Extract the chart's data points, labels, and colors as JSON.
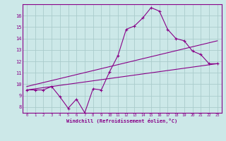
{
  "xlabel": "Windchill (Refroidissement éolien,°C)",
  "bg_color": "#cce8e8",
  "grid_color": "#aacccc",
  "line_color": "#880088",
  "xlim": [
    -0.5,
    23.5
  ],
  "ylim": [
    7.5,
    17.0
  ],
  "xticks": [
    0,
    1,
    2,
    3,
    4,
    5,
    6,
    7,
    8,
    9,
    10,
    11,
    12,
    13,
    14,
    15,
    16,
    17,
    18,
    19,
    20,
    21,
    22,
    23
  ],
  "yticks": [
    8,
    9,
    10,
    11,
    12,
    13,
    14,
    15,
    16
  ],
  "line1_x": [
    0,
    1,
    2,
    3,
    4,
    5,
    6,
    7,
    8,
    9,
    10,
    11,
    12,
    13,
    14,
    15,
    16,
    17,
    18,
    19,
    20,
    21,
    22,
    23
  ],
  "line1_y": [
    9.5,
    9.5,
    9.5,
    9.8,
    8.9,
    7.9,
    8.7,
    7.5,
    9.6,
    9.5,
    11.1,
    12.5,
    14.8,
    15.1,
    15.8,
    16.7,
    16.4,
    14.8,
    14.0,
    13.8,
    12.9,
    12.6,
    11.8,
    11.8
  ],
  "line2_x": [
    0,
    23
  ],
  "line2_y": [
    9.5,
    11.8
  ],
  "line3_x": [
    0,
    23
  ],
  "line3_y": [
    9.8,
    13.8
  ]
}
